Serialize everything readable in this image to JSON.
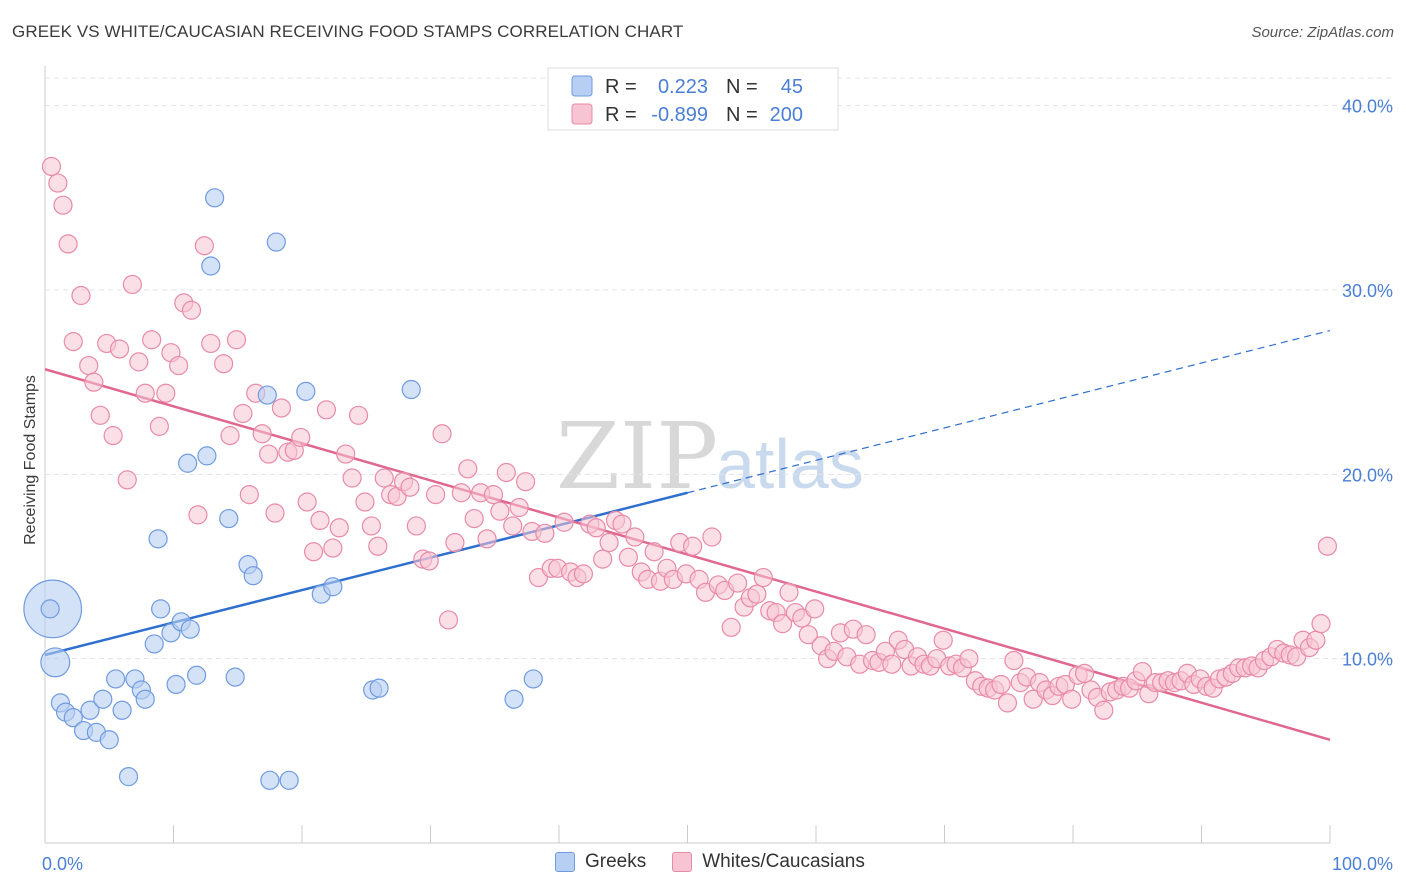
{
  "title": "GREEK VS WHITE/CAUCASIAN RECEIVING FOOD STAMPS CORRELATION CHART",
  "source": "Source: ZipAtlas.com",
  "colors": {
    "blue": "#4a7fd4",
    "blue_fill": "#b7cff2",
    "blue_line": "#2f6fce",
    "pink_fill": "#f7c4d3",
    "pink_stroke": "#e88aa8",
    "pink_line": "#e0678f"
  },
  "legend": {
    "r_label": "R =",
    "n_label": "N =",
    "rows": [
      {
        "series": "Greeks",
        "r": "0.223",
        "n": "45"
      },
      {
        "series": "Whites/Caucasians",
        "r": "-0.899",
        "n": "200"
      }
    ]
  },
  "watermark": {
    "zip": "ZIP",
    "atlas": "atlas"
  },
  "chart_data": {
    "type": "scatter",
    "xlabel": "",
    "ylabel": "Receiving Food Stamps",
    "xlim": [
      0,
      100
    ],
    "ylim": [
      0,
      41.5
    ],
    "x_tick_labels": [
      "0.0%",
      "100.0%"
    ],
    "y_ticks": [
      10,
      20,
      30,
      40
    ],
    "y_tick_labels": [
      "10.0%",
      "20.0%",
      "30.0%",
      "40.0%"
    ],
    "legend_position": "top-center",
    "series": [
      {
        "name": "Greeks",
        "trend": {
          "x0": 0,
          "y0": 10.2,
          "x1": 50,
          "y1": 19.0,
          "dashed_x1": 100,
          "dashed_y1": 27.8
        },
        "points": [
          [
            0.6,
            12.7,
            3.2
          ],
          [
            0.8,
            9.8,
            1.6
          ],
          [
            1.2,
            7.6,
            1
          ],
          [
            1.6,
            7.1,
            1
          ],
          [
            2.2,
            6.8,
            1
          ],
          [
            3.0,
            6.1,
            1
          ],
          [
            3.5,
            7.2,
            1
          ],
          [
            4.0,
            6.0,
            1
          ],
          [
            4.5,
            7.8,
            1
          ],
          [
            5.0,
            5.6,
            1
          ],
          [
            5.5,
            8.9,
            1
          ],
          [
            6.0,
            7.2,
            1
          ],
          [
            6.5,
            3.6,
            1
          ],
          [
            7.0,
            8.9,
            1
          ],
          [
            7.5,
            8.3,
            1
          ],
          [
            7.8,
            7.8,
            1
          ],
          [
            8.5,
            10.8,
            1
          ],
          [
            8.8,
            16.5,
            1
          ],
          [
            9.0,
            12.7,
            1
          ],
          [
            9.8,
            11.4,
            1
          ],
          [
            10.2,
            8.6,
            1
          ],
          [
            10.6,
            12.0,
            1
          ],
          [
            11.1,
            20.6,
            1
          ],
          [
            11.3,
            11.6,
            1
          ],
          [
            11.8,
            9.1,
            1
          ],
          [
            12.6,
            21.0,
            1
          ],
          [
            12.9,
            31.3,
            1
          ],
          [
            13.2,
            35.0,
            1
          ],
          [
            14.3,
            17.6,
            1
          ],
          [
            14.8,
            9.0,
            1
          ],
          [
            15.8,
            15.1,
            1
          ],
          [
            16.2,
            14.5,
            1
          ],
          [
            17.3,
            24.3,
            1
          ],
          [
            17.5,
            3.4,
            1
          ],
          [
            18.0,
            32.6,
            1
          ],
          [
            19.0,
            3.4,
            1
          ],
          [
            20.3,
            24.5,
            1
          ],
          [
            21.5,
            13.5,
            1
          ],
          [
            22.4,
            13.9,
            1
          ],
          [
            25.5,
            8.3,
            1
          ],
          [
            26.0,
            8.4,
            1
          ],
          [
            28.5,
            24.6,
            1
          ],
          [
            36.5,
            7.8,
            1
          ],
          [
            38.0,
            8.9,
            1
          ],
          [
            0.4,
            12.7,
            1
          ]
        ]
      },
      {
        "name": "Whites/Caucasians",
        "trend": {
          "x0": 0,
          "y0": 25.7,
          "x1": 100,
          "y1": 5.6
        },
        "points": [
          [
            0.5,
            36.7
          ],
          [
            1.0,
            35.8
          ],
          [
            1.4,
            34.6
          ],
          [
            1.8,
            32.5
          ],
          [
            2.2,
            27.2
          ],
          [
            2.8,
            29.7
          ],
          [
            3.4,
            25.9
          ],
          [
            3.8,
            25.0
          ],
          [
            4.3,
            23.2
          ],
          [
            4.8,
            27.1
          ],
          [
            5.3,
            22.1
          ],
          [
            5.8,
            26.8
          ],
          [
            6.4,
            19.7
          ],
          [
            6.8,
            30.3
          ],
          [
            7.3,
            26.1
          ],
          [
            7.8,
            24.4
          ],
          [
            8.3,
            27.3
          ],
          [
            8.9,
            22.6
          ],
          [
            9.4,
            24.4
          ],
          [
            9.8,
            26.6
          ],
          [
            10.4,
            25.9
          ],
          [
            10.8,
            29.3
          ],
          [
            11.4,
            28.9
          ],
          [
            11.9,
            17.8
          ],
          [
            12.4,
            32.4
          ],
          [
            12.9,
            27.1
          ],
          [
            13.9,
            26.0
          ],
          [
            14.4,
            22.1
          ],
          [
            14.9,
            27.3
          ],
          [
            15.4,
            23.3
          ],
          [
            15.9,
            18.9
          ],
          [
            16.4,
            24.4
          ],
          [
            16.9,
            22.2
          ],
          [
            17.4,
            21.1
          ],
          [
            17.9,
            17.9
          ],
          [
            18.4,
            23.6
          ],
          [
            18.9,
            21.2
          ],
          [
            19.4,
            21.3
          ],
          [
            19.9,
            22.0
          ],
          [
            20.4,
            18.5
          ],
          [
            20.9,
            15.8
          ],
          [
            21.4,
            17.5
          ],
          [
            21.9,
            23.5
          ],
          [
            22.4,
            16.0
          ],
          [
            22.9,
            17.1
          ],
          [
            23.4,
            21.1
          ],
          [
            23.9,
            19.8
          ],
          [
            24.4,
            23.2
          ],
          [
            24.9,
            18.5
          ],
          [
            25.4,
            17.2
          ],
          [
            25.9,
            16.1
          ],
          [
            26.4,
            19.8
          ],
          [
            26.9,
            18.9
          ],
          [
            27.4,
            18.8
          ],
          [
            27.9,
            19.6
          ],
          [
            28.4,
            19.3
          ],
          [
            28.9,
            17.2
          ],
          [
            29.4,
            15.4
          ],
          [
            29.9,
            15.3
          ],
          [
            30.4,
            18.9
          ],
          [
            30.9,
            22.2
          ],
          [
            31.4,
            12.1
          ],
          [
            31.9,
            16.3
          ],
          [
            32.4,
            19.0
          ],
          [
            32.9,
            20.3
          ],
          [
            33.4,
            17.6
          ],
          [
            33.9,
            19.0
          ],
          [
            34.4,
            16.5
          ],
          [
            34.9,
            18.9
          ],
          [
            35.4,
            18.0
          ],
          [
            35.9,
            20.1
          ],
          [
            36.4,
            17.2
          ],
          [
            36.9,
            18.2
          ],
          [
            37.4,
            19.6
          ],
          [
            37.9,
            16.9
          ],
          [
            38.4,
            14.4
          ],
          [
            38.9,
            16.8
          ],
          [
            39.4,
            14.9
          ],
          [
            39.9,
            14.9
          ],
          [
            40.4,
            17.4
          ],
          [
            40.9,
            14.7
          ],
          [
            41.4,
            14.4
          ],
          [
            41.9,
            14.6
          ],
          [
            42.4,
            17.3
          ],
          [
            42.9,
            17.1
          ],
          [
            43.4,
            15.4
          ],
          [
            43.9,
            16.3
          ],
          [
            44.4,
            17.5
          ],
          [
            44.9,
            17.3
          ],
          [
            45.4,
            15.5
          ],
          [
            45.9,
            16.6
          ],
          [
            46.4,
            14.7
          ],
          [
            46.9,
            14.3
          ],
          [
            47.4,
            15.8
          ],
          [
            47.9,
            14.2
          ],
          [
            48.4,
            14.9
          ],
          [
            48.9,
            14.3
          ],
          [
            49.4,
            16.3
          ],
          [
            49.9,
            14.6
          ],
          [
            50.4,
            16.1
          ],
          [
            50.9,
            14.3
          ],
          [
            51.4,
            13.6
          ],
          [
            51.9,
            16.6
          ],
          [
            52.4,
            14.0
          ],
          [
            52.9,
            13.7
          ],
          [
            53.4,
            11.7
          ],
          [
            53.9,
            14.1
          ],
          [
            54.4,
            12.8
          ],
          [
            54.9,
            13.3
          ],
          [
            55.4,
            13.5
          ],
          [
            55.9,
            14.4
          ],
          [
            56.4,
            12.6
          ],
          [
            56.9,
            12.5
          ],
          [
            57.4,
            11.9
          ],
          [
            57.9,
            13.6
          ],
          [
            58.4,
            12.5
          ],
          [
            58.9,
            12.2
          ],
          [
            59.4,
            11.3
          ],
          [
            59.9,
            12.7
          ],
          [
            60.4,
            10.7
          ],
          [
            60.9,
            10.0
          ],
          [
            61.4,
            10.4
          ],
          [
            61.9,
            11.4
          ],
          [
            62.4,
            10.1
          ],
          [
            62.9,
            11.6
          ],
          [
            63.4,
            9.7
          ],
          [
            63.9,
            11.3
          ],
          [
            64.4,
            9.9
          ],
          [
            64.9,
            9.8
          ],
          [
            65.4,
            10.4
          ],
          [
            65.9,
            9.7
          ],
          [
            66.4,
            11.0
          ],
          [
            66.9,
            10.5
          ],
          [
            67.4,
            9.6
          ],
          [
            67.9,
            10.1
          ],
          [
            68.4,
            9.7
          ],
          [
            68.9,
            9.6
          ],
          [
            69.4,
            10.0
          ],
          [
            69.9,
            11.0
          ],
          [
            70.4,
            9.6
          ],
          [
            70.9,
            9.7
          ],
          [
            71.4,
            9.5
          ],
          [
            71.9,
            10.0
          ],
          [
            72.4,
            8.8
          ],
          [
            72.9,
            8.5
          ],
          [
            73.4,
            8.4
          ],
          [
            73.9,
            8.3
          ],
          [
            74.4,
            8.6
          ],
          [
            74.9,
            7.6
          ],
          [
            75.4,
            9.9
          ],
          [
            75.9,
            8.7
          ],
          [
            76.4,
            9.0
          ],
          [
            76.9,
            7.8
          ],
          [
            77.4,
            8.7
          ],
          [
            77.9,
            8.3
          ],
          [
            78.4,
            8.0
          ],
          [
            78.9,
            8.5
          ],
          [
            79.4,
            8.6
          ],
          [
            79.9,
            7.8
          ],
          [
            80.4,
            9.1
          ],
          [
            80.9,
            9.2
          ],
          [
            81.4,
            8.3
          ],
          [
            81.9,
            7.9
          ],
          [
            82.4,
            7.2
          ],
          [
            82.9,
            8.2
          ],
          [
            83.4,
            8.3
          ],
          [
            83.9,
            8.5
          ],
          [
            84.4,
            8.4
          ],
          [
            84.9,
            8.8
          ],
          [
            85.4,
            9.3
          ],
          [
            85.9,
            8.1
          ],
          [
            86.4,
            8.7
          ],
          [
            86.9,
            8.7
          ],
          [
            87.4,
            8.8
          ],
          [
            87.9,
            8.7
          ],
          [
            88.4,
            8.8
          ],
          [
            88.9,
            9.2
          ],
          [
            89.4,
            8.6
          ],
          [
            89.9,
            8.9
          ],
          [
            90.4,
            8.5
          ],
          [
            90.9,
            8.4
          ],
          [
            91.4,
            8.9
          ],
          [
            91.9,
            9.0
          ],
          [
            92.4,
            9.2
          ],
          [
            92.9,
            9.5
          ],
          [
            93.4,
            9.5
          ],
          [
            93.9,
            9.6
          ],
          [
            94.4,
            9.5
          ],
          [
            94.9,
            9.9
          ],
          [
            95.4,
            10.1
          ],
          [
            95.9,
            10.5
          ],
          [
            96.4,
            10.3
          ],
          [
            96.9,
            10.2
          ],
          [
            97.4,
            10.1
          ],
          [
            97.9,
            11.0
          ],
          [
            98.4,
            10.6
          ],
          [
            98.9,
            11.0
          ],
          [
            99.3,
            11.9
          ],
          [
            99.8,
            16.1
          ]
        ]
      }
    ]
  }
}
